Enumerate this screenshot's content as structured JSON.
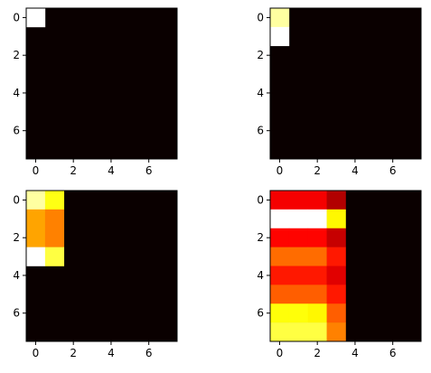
{
  "colormap": "hot",
  "chart_data": [
    {
      "type": "heatmap",
      "title": "",
      "xlabel": "",
      "ylabel": "",
      "rows": 8,
      "cols": 8,
      "xticks": [
        0,
        2,
        4,
        6
      ],
      "yticks": [
        0,
        2,
        4,
        6
      ],
      "vmin": 0,
      "vmax": 1,
      "values": [
        [
          1,
          0,
          0,
          0,
          0,
          0,
          0,
          0
        ],
        [
          0,
          0,
          0,
          0,
          0,
          0,
          0,
          0
        ],
        [
          0,
          0,
          0,
          0,
          0,
          0,
          0,
          0
        ],
        [
          0,
          0,
          0,
          0,
          0,
          0,
          0,
          0
        ],
        [
          0,
          0,
          0,
          0,
          0,
          0,
          0,
          0
        ],
        [
          0,
          0,
          0,
          0,
          0,
          0,
          0,
          0
        ],
        [
          0,
          0,
          0,
          0,
          0,
          0,
          0,
          0
        ],
        [
          0,
          0,
          0,
          0,
          0,
          0,
          0,
          0
        ]
      ]
    },
    {
      "type": "heatmap",
      "title": "",
      "xlabel": "",
      "ylabel": "",
      "rows": 8,
      "cols": 8,
      "xticks": [
        0,
        2,
        4,
        6
      ],
      "yticks": [
        0,
        2,
        4,
        6
      ],
      "vmin": 0,
      "vmax": 1,
      "values": [
        [
          0.9,
          0,
          0,
          0,
          0,
          0,
          0,
          0
        ],
        [
          1,
          0,
          0,
          0,
          0,
          0,
          0,
          0
        ],
        [
          0,
          0,
          0,
          0,
          0,
          0,
          0,
          0
        ],
        [
          0,
          0,
          0,
          0,
          0,
          0,
          0,
          0
        ],
        [
          0,
          0,
          0,
          0,
          0,
          0,
          0,
          0
        ],
        [
          0,
          0,
          0,
          0,
          0,
          0,
          0,
          0
        ],
        [
          0,
          0,
          0,
          0,
          0,
          0,
          0,
          0
        ],
        [
          0,
          0,
          0,
          0,
          0,
          0,
          0,
          0
        ]
      ]
    },
    {
      "type": "heatmap",
      "title": "",
      "xlabel": "",
      "ylabel": "",
      "rows": 8,
      "cols": 8,
      "xticks": [
        0,
        2,
        4,
        6
      ],
      "yticks": [
        0,
        2,
        4,
        6
      ],
      "vmin": 0,
      "vmax": 1,
      "values": [
        [
          0.9,
          0.75,
          0,
          0,
          0,
          0,
          0,
          0
        ],
        [
          0.6,
          0.55,
          0,
          0,
          0,
          0,
          0,
          0
        ],
        [
          0.6,
          0.55,
          0,
          0,
          0,
          0,
          0,
          0
        ],
        [
          1,
          0.8,
          0,
          0,
          0,
          0,
          0,
          0
        ],
        [
          0,
          0,
          0,
          0,
          0,
          0,
          0,
          0
        ],
        [
          0,
          0,
          0,
          0,
          0,
          0,
          0,
          0
        ],
        [
          0,
          0,
          0,
          0,
          0,
          0,
          0,
          0
        ],
        [
          0,
          0,
          0,
          0,
          0,
          0,
          0,
          0
        ]
      ]
    },
    {
      "type": "heatmap",
      "title": "",
      "xlabel": "",
      "ylabel": "",
      "rows": 8,
      "cols": 8,
      "xticks": [
        0,
        2,
        4,
        6
      ],
      "yticks": [
        0,
        2,
        4,
        6
      ],
      "vmin": 0,
      "vmax": 1,
      "values": [
        [
          0.35,
          0.35,
          0.35,
          0.25,
          0,
          0,
          0,
          0
        ],
        [
          1,
          1,
          1,
          0.72,
          0,
          0,
          0,
          0
        ],
        [
          0.37,
          0.37,
          0.37,
          0.28,
          0,
          0,
          0,
          0
        ],
        [
          0.52,
          0.52,
          0.52,
          0.4,
          0,
          0,
          0,
          0
        ],
        [
          0.4,
          0.4,
          0.4,
          0.32,
          0,
          0,
          0,
          0
        ],
        [
          0.5,
          0.5,
          0.5,
          0.4,
          0,
          0,
          0,
          0
        ],
        [
          0.74,
          0.74,
          0.72,
          0.5,
          0,
          0,
          0,
          0
        ],
        [
          0.8,
          0.8,
          0.8,
          0.55,
          0,
          0,
          0,
          0
        ]
      ]
    }
  ]
}
